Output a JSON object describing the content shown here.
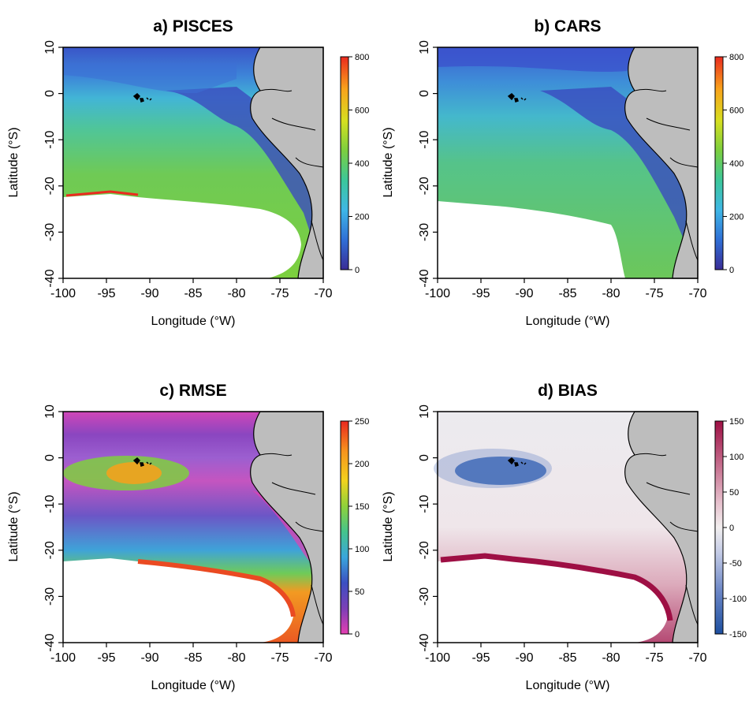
{
  "panels": [
    {
      "id": "a",
      "title": "a) PISCES",
      "xlabel": "Longitude (°W)",
      "ylabel": "Latitude (°S)",
      "x_ticks": [
        "-100",
        "-95",
        "-90",
        "-85",
        "-80",
        "-75",
        "-70"
      ],
      "y_ticks": [
        "10",
        "0",
        "-10",
        "-20",
        "-30",
        "-40"
      ],
      "colorbar": {
        "ticks": [
          "800",
          "600",
          "400",
          "200",
          "0"
        ],
        "colors": [
          "#3a2c96",
          "#2f6fd6",
          "#3fb7e6",
          "#3cc79a",
          "#7ccf3e",
          "#d7df20",
          "#f9a21b",
          "#ea2b1f"
        ]
      }
    },
    {
      "id": "b",
      "title": "b) CARS",
      "xlabel": "Longitude (°W)",
      "ylabel": "Latitude (°S)",
      "x_ticks": [
        "-100",
        "-95",
        "-90",
        "-85",
        "-80",
        "-75",
        "-70"
      ],
      "y_ticks": [
        "10",
        "0",
        "-10",
        "-20",
        "-30",
        "-40"
      ],
      "colorbar": {
        "ticks": [
          "800",
          "600",
          "400",
          "200",
          "0"
        ],
        "colors": [
          "#3a2c96",
          "#2f6fd6",
          "#3fb7e6",
          "#3cc79a",
          "#7ccf3e",
          "#d7df20",
          "#f9a21b",
          "#ea2b1f"
        ]
      }
    },
    {
      "id": "c",
      "title": "c) RMSE",
      "xlabel": "Longitude (°W)",
      "ylabel": "Latitude (°S)",
      "x_ticks": [
        "-100",
        "-95",
        "-90",
        "-85",
        "-80",
        "-75",
        "-70"
      ],
      "y_ticks": [
        "10",
        "0",
        "-10",
        "-20",
        "-30",
        "-40"
      ],
      "colorbar": {
        "ticks": [
          "250",
          "200",
          "150",
          "100",
          "50",
          "0"
        ],
        "colors": [
          "#e43fb2",
          "#7c3fb6",
          "#3b4fc2",
          "#39a6dc",
          "#45c48c",
          "#8fd13a",
          "#f2d21d",
          "#f7931e",
          "#e9281f"
        ]
      }
    },
    {
      "id": "d",
      "title": "d) BIAS",
      "xlabel": "Longitude (°W)",
      "ylabel": "Latitude (°S)",
      "x_ticks": [
        "-100",
        "-95",
        "-90",
        "-85",
        "-80",
        "-75",
        "-70"
      ],
      "y_ticks": [
        "10",
        "0",
        "-10",
        "-20",
        "-30",
        "-40"
      ],
      "colorbar": {
        "ticks": [
          "150",
          "100",
          "50",
          "0",
          "-50",
          "-100",
          "-150"
        ],
        "colors": [
          "#1d4fa0",
          "#6b86c6",
          "#c3cbe6",
          "#f2efef",
          "#e6bfcc",
          "#c46a8a",
          "#9e0f44"
        ]
      }
    }
  ],
  "colors": {
    "land": "#bdbdbd",
    "coast": "#000000",
    "background": "#ffffff"
  }
}
